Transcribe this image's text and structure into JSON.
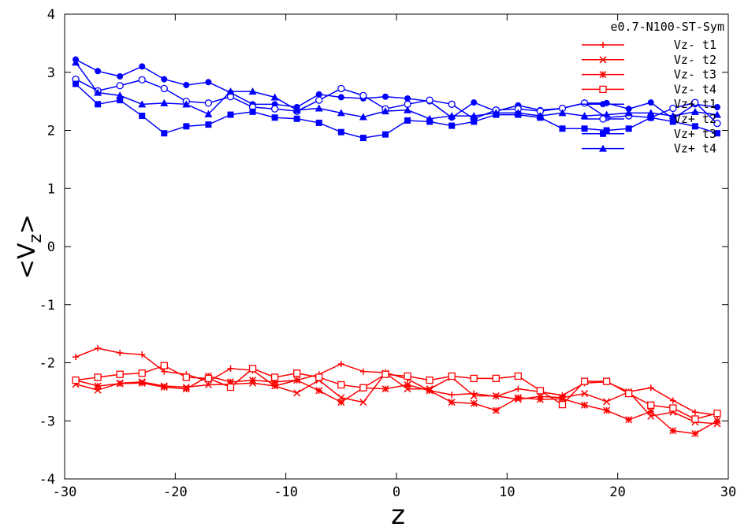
{
  "chart_data": {
    "type": "line",
    "title": "",
    "xlabel": "z",
    "ylabel": "<Vz>",
    "xlim": [
      -30,
      30
    ],
    "ylim": [
      -4,
      4
    ],
    "xticks": [
      -30,
      -20,
      -10,
      0,
      10,
      20,
      30
    ],
    "yticks": [
      -4,
      -3,
      -2,
      -1,
      0,
      1,
      2,
      3,
      4
    ],
    "grid": false,
    "legend_title": "e0.7-N100-ST-Sym",
    "legend_position": "top-right",
    "x": [
      -29,
      -27,
      -25,
      -23,
      -21,
      -19,
      -17,
      -15,
      -13,
      -11,
      -9,
      -7,
      -5,
      -3,
      -1,
      1,
      3,
      5,
      7,
      9,
      11,
      13,
      15,
      17,
      19,
      21,
      23,
      25,
      27,
      29
    ],
    "series": [
      {
        "name": "Vz- t1",
        "color": "#ff0000",
        "marker": "plus",
        "values": [
          -1.9,
          -1.75,
          -1.83,
          -1.86,
          -2.15,
          -2.2,
          -2.32,
          -2.1,
          -2.13,
          -2.4,
          -2.3,
          -2.2,
          -2.02,
          -2.15,
          -2.17,
          -2.28,
          -2.48,
          -2.55,
          -2.53,
          -2.58,
          -2.45,
          -2.5,
          -2.56,
          -2.35,
          -2.33,
          -2.5,
          -2.43,
          -2.65,
          -2.85,
          -2.9
        ]
      },
      {
        "name": "Vz- t2",
        "color": "#ff0000",
        "marker": "x",
        "values": [
          -2.37,
          -2.47,
          -2.35,
          -2.33,
          -2.4,
          -2.42,
          -2.38,
          -2.37,
          -2.35,
          -2.4,
          -2.52,
          -2.3,
          -2.6,
          -2.68,
          -2.18,
          -2.45,
          -2.45,
          -2.25,
          -2.57,
          -2.57,
          -2.63,
          -2.58,
          -2.6,
          -2.53,
          -2.67,
          -2.5,
          -2.92,
          -2.85,
          -3.02,
          -3.05
        ]
      },
      {
        "name": "Vz- t3",
        "color": "#ff0000",
        "marker": "star",
        "values": [
          -2.3,
          -2.4,
          -2.36,
          -2.35,
          -2.42,
          -2.45,
          -2.23,
          -2.33,
          -2.3,
          -2.33,
          -2.3,
          -2.48,
          -2.68,
          -2.43,
          -2.45,
          -2.38,
          -2.48,
          -2.68,
          -2.7,
          -2.82,
          -2.6,
          -2.63,
          -2.62,
          -2.73,
          -2.82,
          -2.98,
          -2.84,
          -3.17,
          -3.22,
          -3.0
        ]
      },
      {
        "name": "Vz- t4",
        "color": "#ff0000",
        "marker": "open-square",
        "values": [
          -2.3,
          -2.25,
          -2.2,
          -2.18,
          -2.05,
          -2.25,
          -2.27,
          -2.42,
          -2.1,
          -2.25,
          -2.18,
          -2.25,
          -2.38,
          -2.43,
          -2.2,
          -2.23,
          -2.3,
          -2.23,
          -2.27,
          -2.27,
          -2.23,
          -2.48,
          -2.72,
          -2.32,
          -2.32,
          -2.53,
          -2.73,
          -2.78,
          -2.97,
          -2.87
        ]
      },
      {
        "name": "Vz+ t1",
        "color": "#0000ff",
        "marker": "filled-circle",
        "values": [
          3.22,
          3.02,
          2.93,
          3.1,
          2.88,
          2.78,
          2.83,
          2.65,
          2.45,
          2.45,
          2.4,
          2.62,
          2.57,
          2.55,
          2.58,
          2.55,
          2.5,
          2.22,
          2.48,
          2.33,
          2.43,
          2.35,
          2.38,
          2.47,
          2.47,
          2.37,
          2.48,
          2.2,
          2.45,
          2.4
        ]
      },
      {
        "name": "Vz+ t2",
        "color": "#0000ff",
        "marker": "open-circle",
        "values": [
          2.88,
          2.68,
          2.77,
          2.87,
          2.72,
          2.5,
          2.47,
          2.58,
          2.4,
          2.37,
          2.33,
          2.52,
          2.72,
          2.6,
          2.37,
          2.45,
          2.52,
          2.45,
          2.2,
          2.35,
          2.37,
          2.33,
          2.38,
          2.47,
          2.22,
          2.25,
          2.22,
          2.38,
          2.48,
          2.12
        ]
      },
      {
        "name": "Vz+ t3",
        "color": "#0000ff",
        "marker": "filled-square",
        "values": [
          2.8,
          2.45,
          2.52,
          2.25,
          1.95,
          2.07,
          2.1,
          2.27,
          2.32,
          2.22,
          2.2,
          2.13,
          1.97,
          1.87,
          1.93,
          2.17,
          2.15,
          2.08,
          2.15,
          2.27,
          2.27,
          2.22,
          2.03,
          2.03,
          2.0,
          2.03,
          2.22,
          2.15,
          2.07,
          1.95
        ]
      },
      {
        "name": "Vz+ t4",
        "color": "#0000ff",
        "marker": "filled-triangle",
        "values": [
          3.17,
          2.65,
          2.6,
          2.45,
          2.47,
          2.45,
          2.28,
          2.67,
          2.67,
          2.57,
          2.35,
          2.38,
          2.3,
          2.23,
          2.33,
          2.35,
          2.2,
          2.25,
          2.25,
          2.3,
          2.3,
          2.25,
          2.3,
          2.25,
          2.27,
          2.3,
          2.3,
          2.25,
          2.32,
          2.27
        ]
      }
    ]
  }
}
